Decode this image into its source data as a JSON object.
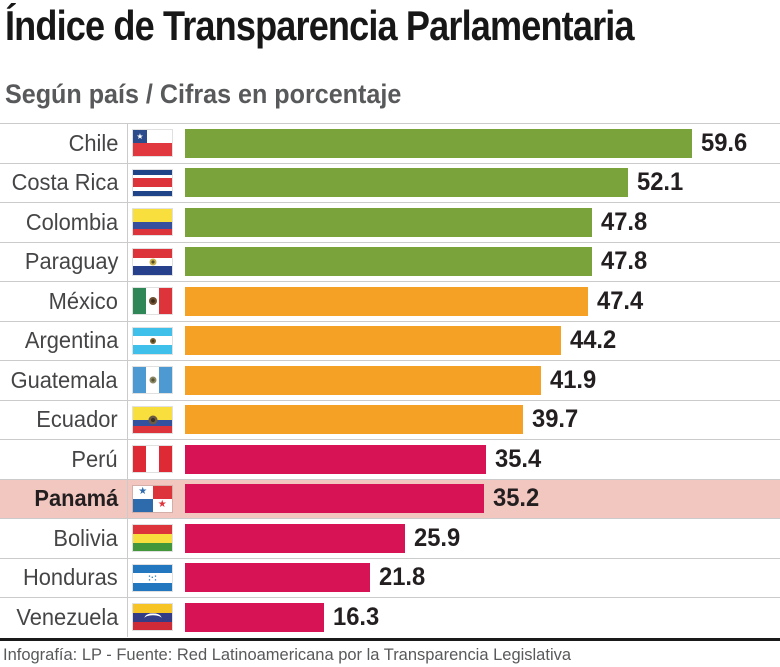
{
  "header": {
    "title": "Índice de Transparencia Parlamentaria",
    "subtitle": "Según país / Cifras en porcentaje"
  },
  "footer": {
    "credit": "Infografía: LP - Fuente: Red Latinoamericana por la Transparencia Legislativa"
  },
  "colors": {
    "green": "#7BA33C",
    "orange": "#F4A126",
    "crimson": "#D81355",
    "highlight_row_bg": "#F2C7C0",
    "divider": "#CBCBCB",
    "bottom_rule": "#1A1A1A",
    "text_dark": "#231F20",
    "text_gray": "#58595B"
  },
  "chart_data": {
    "type": "bar",
    "orientation": "horizontal",
    "title": "Índice de Transparencia Parlamentaria",
    "subtitle": "Según país / Cifras en porcentaje",
    "unit": "porcentaje",
    "categories": [
      "Chile",
      "Costa Rica",
      "Colombia",
      "Paraguay",
      "México",
      "Argentina",
      "Guatemala",
      "Ecuador",
      "Perú",
      "Panamá",
      "Bolivia",
      "Honduras",
      "Venezuela"
    ],
    "values": [
      59.6,
      52.1,
      47.8,
      47.8,
      47.4,
      44.2,
      41.9,
      39.7,
      35.4,
      35.2,
      25.9,
      21.8,
      16.3
    ],
    "bar_color_keys": [
      "green",
      "green",
      "green",
      "green",
      "orange",
      "orange",
      "orange",
      "orange",
      "crimson",
      "crimson",
      "crimson",
      "crimson",
      "crimson"
    ],
    "highlighted_category": "Panamá",
    "xlim": [
      0,
      62
    ],
    "grid": false,
    "legend": false,
    "value_labels": "end-of-bar",
    "source": "Red Latinoamericana por la Transparencia Legislativa"
  },
  "rows": [
    {
      "id": "chile",
      "country": "Chile",
      "value": 59.6,
      "value_label": "59.6",
      "color_key": "green",
      "highlight": false,
      "flag": {
        "layout": "chile",
        "white": "#FFFFFF",
        "red": "#E0383E",
        "canton": "#2B4C8C",
        "star": "#FFFFFF"
      }
    },
    {
      "id": "costa-rica",
      "country": "Costa Rica",
      "value": 52.1,
      "value_label": "52.1",
      "color_key": "green",
      "highlight": false,
      "flag": {
        "layout": "h",
        "stripes": [
          [
            "#1F4487",
            20
          ],
          [
            "#FFFFFF",
            13
          ],
          [
            "#DD343C",
            34
          ],
          [
            "#FFFFFF",
            13
          ],
          [
            "#1F4487",
            20
          ]
        ]
      }
    },
    {
      "id": "colombia",
      "country": "Colombia",
      "value": 47.8,
      "value_label": "47.8",
      "color_key": "green",
      "highlight": false,
      "flag": {
        "layout": "h",
        "stripes": [
          [
            "#F8DF3D",
            50
          ],
          [
            "#36509E",
            25
          ],
          [
            "#DD343C",
            25
          ]
        ]
      }
    },
    {
      "id": "paraguay",
      "country": "Paraguay",
      "value": 47.8,
      "value_label": "47.8",
      "color_key": "green",
      "highlight": false,
      "flag": {
        "layout": "h",
        "stripes": [
          [
            "#DD343C",
            34
          ],
          [
            "#FFFFFF",
            33
          ],
          [
            "#27408C",
            33
          ]
        ],
        "emblem": {
          "kind": "dot",
          "size": 7,
          "color": "#C9B24A",
          "core": "#55502E"
        }
      }
    },
    {
      "id": "mexico",
      "country": "México",
      "value": 47.4,
      "value_label": "47.4",
      "color_key": "orange",
      "highlight": false,
      "flag": {
        "layout": "v",
        "stripes": [
          [
            "#2F8757",
            33
          ],
          [
            "#FFFFFF",
            34
          ],
          [
            "#DD343C",
            33
          ]
        ],
        "emblem": {
          "kind": "dot",
          "size": 8,
          "color": "#6E4F33",
          "core": "#3A2A18"
        }
      }
    },
    {
      "id": "argentina",
      "country": "Argentina",
      "value": 44.2,
      "value_label": "44.2",
      "color_key": "orange",
      "highlight": false,
      "flag": {
        "layout": "h",
        "stripes": [
          [
            "#3FC0EA",
            32
          ],
          [
            "#FFFFFF",
            36
          ],
          [
            "#3FC0EA",
            32
          ]
        ],
        "emblem": {
          "kind": "dot",
          "size": 6,
          "color": "#7A6433",
          "core": "#4A3A1A"
        }
      }
    },
    {
      "id": "guatemala",
      "country": "Guatemala",
      "value": 41.9,
      "value_label": "41.9",
      "color_key": "orange",
      "highlight": false,
      "flag": {
        "layout": "v",
        "stripes": [
          [
            "#4D9AD3",
            33
          ],
          [
            "#FFFFFF",
            34
          ],
          [
            "#4D9AD3",
            33
          ]
        ],
        "emblem": {
          "kind": "dot",
          "size": 7,
          "color": "#8A8763",
          "core": "#565339"
        }
      }
    },
    {
      "id": "ecuador",
      "country": "Ecuador",
      "value": 39.7,
      "value_label": "39.7",
      "color_key": "orange",
      "highlight": false,
      "flag": {
        "layout": "h",
        "stripes": [
          [
            "#F8DF3D",
            50
          ],
          [
            "#33519E",
            25
          ],
          [
            "#DD343C",
            25
          ]
        ],
        "emblem": {
          "kind": "dot",
          "size": 9,
          "color": "#6B5A44",
          "core": "#3A3127"
        }
      }
    },
    {
      "id": "peru",
      "country": "Perú",
      "value": 35.4,
      "value_label": "35.4",
      "color_key": "crimson",
      "highlight": false,
      "flag": {
        "layout": "v",
        "stripes": [
          [
            "#DD2A35",
            33
          ],
          [
            "#FFFFFF",
            34
          ],
          [
            "#DD2A35",
            33
          ]
        ]
      }
    },
    {
      "id": "panama",
      "country": "Panamá",
      "value": 35.2,
      "value_label": "35.2",
      "color_key": "crimson",
      "highlight": true,
      "flag": {
        "layout": "quarters",
        "tl": "#FFFFFF",
        "tr": "#DD343C",
        "bl": "#2E6BAD",
        "br": "#FFFFFF",
        "star_tl": "#2E6BAD",
        "star_br": "#DD343C"
      }
    },
    {
      "id": "bolivia",
      "country": "Bolivia",
      "value": 25.9,
      "value_label": "25.9",
      "color_key": "crimson",
      "highlight": false,
      "flag": {
        "layout": "h",
        "stripes": [
          [
            "#DD343C",
            33
          ],
          [
            "#F8DF3D",
            34
          ],
          [
            "#42973B",
            33
          ]
        ]
      }
    },
    {
      "id": "honduras",
      "country": "Honduras",
      "value": 21.8,
      "value_label": "21.8",
      "color_key": "crimson",
      "highlight": false,
      "flag": {
        "layout": "h",
        "stripes": [
          [
            "#2277BE",
            31
          ],
          [
            "#FFFFFF",
            38
          ],
          [
            "#2277BE",
            31
          ]
        ],
        "emblem": {
          "kind": "text",
          "text": ":·:",
          "color": "#2277BE"
        }
      }
    },
    {
      "id": "venezuela",
      "country": "Venezuela",
      "value": 16.3,
      "value_label": "16.3",
      "color_key": "crimson",
      "highlight": false,
      "flag": {
        "layout": "h",
        "stripes": [
          [
            "#F6C425",
            33
          ],
          [
            "#333C85",
            34
          ],
          [
            "#CE2A38",
            33
          ]
        ],
        "emblem": {
          "kind": "arc",
          "color": "#FFFFFF"
        }
      }
    }
  ]
}
